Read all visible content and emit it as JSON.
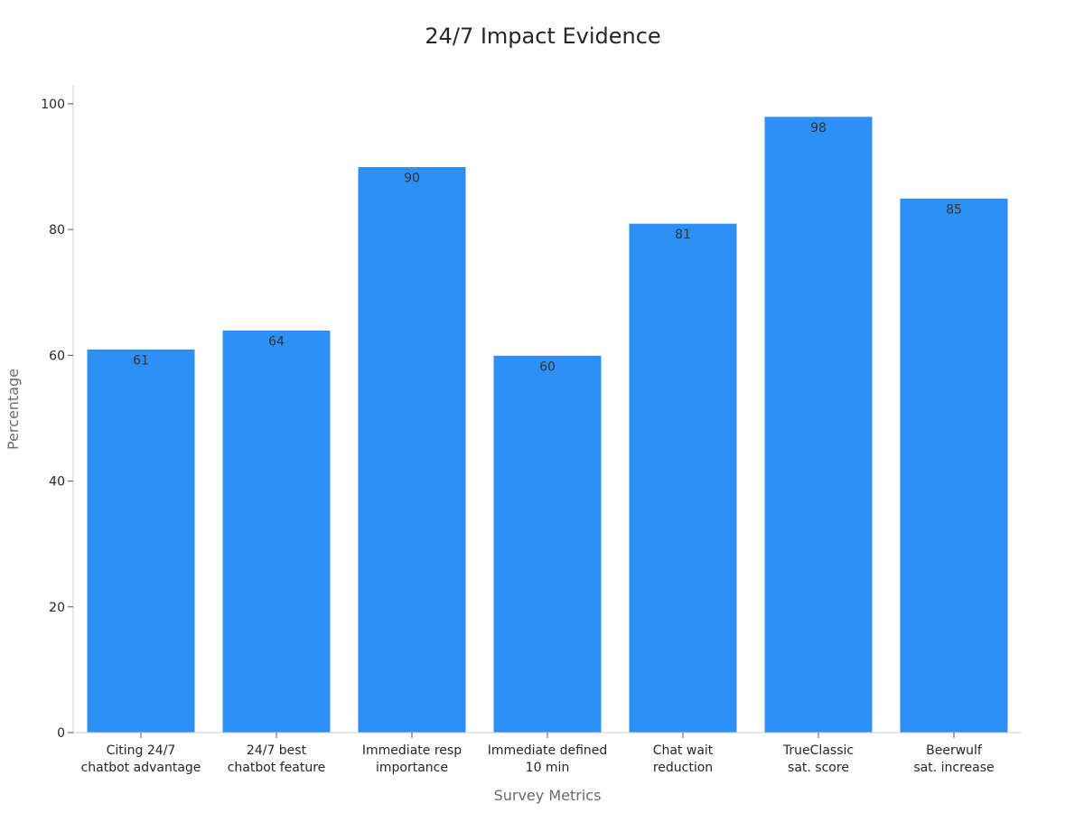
{
  "chart_data": {
    "type": "bar",
    "title": "24/7 Impact Evidence",
    "xlabel": "Survey Metrics",
    "ylabel": "Percentage",
    "categories": [
      [
        "Citing 24/7",
        "chatbot advantage"
      ],
      [
        "24/7 best",
        "chatbot feature"
      ],
      [
        "Immediate resp",
        "importance"
      ],
      [
        "Immediate defined",
        "10 min"
      ],
      [
        "Chat wait",
        "reduction"
      ],
      [
        "TrueClassic",
        "sat. score"
      ],
      [
        "Beerwulf",
        "sat. increase"
      ]
    ],
    "values": [
      61,
      64,
      90,
      60,
      81,
      98,
      85
    ],
    "ylim": [
      0,
      103
    ],
    "yticks": [
      0,
      20,
      40,
      60,
      80,
      100
    ],
    "grid": false,
    "legend": "none",
    "bar_color": "#2e90f7",
    "bar_edge_color": "#ffffff"
  }
}
